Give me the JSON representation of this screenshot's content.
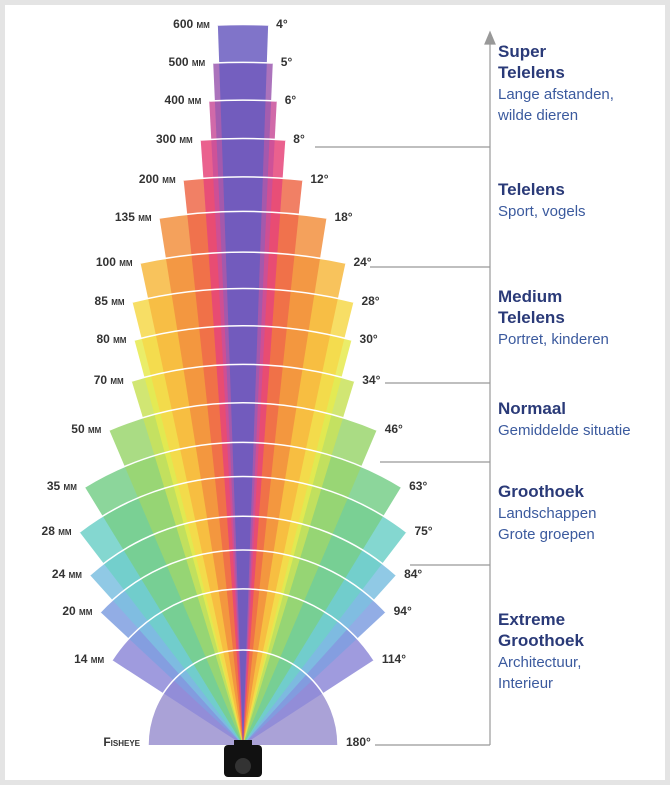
{
  "lenses": [
    {
      "focal": "600 mm",
      "angle": "4°"
    },
    {
      "focal": "500 mm",
      "angle": "5°"
    },
    {
      "focal": "400 mm",
      "angle": "6°"
    },
    {
      "focal": "300 mm",
      "angle": "8°"
    },
    {
      "focal": "200 mm",
      "angle": "12°"
    },
    {
      "focal": "135 mm",
      "angle": "18°"
    },
    {
      "focal": "100 mm",
      "angle": "24°"
    },
    {
      "focal": "85 mm",
      "angle": "28°"
    },
    {
      "focal": "80 mm",
      "angle": "30°"
    },
    {
      "focal": "70 mm",
      "angle": "34°"
    },
    {
      "focal": "50 mm",
      "angle": "46°"
    },
    {
      "focal": "35 mm",
      "angle": "63°"
    },
    {
      "focal": "28 mm",
      "angle": "75°"
    },
    {
      "focal": "24 mm",
      "angle": "84°"
    },
    {
      "focal": "20 mm",
      "angle": "94°"
    },
    {
      "focal": "14 mm",
      "angle": "114°"
    },
    {
      "focal": "Fisheye",
      "angle": "180°"
    }
  ],
  "categories": [
    {
      "title": [
        "Super",
        "Telelens"
      ],
      "description": [
        "Lange afstanden,",
        "wilde dieren"
      ]
    },
    {
      "title": [
        "Telelens"
      ],
      "description": [
        "Sport, vogels"
      ]
    },
    {
      "title": [
        "Medium",
        "Telelens"
      ],
      "description": [
        "Portret, kinderen"
      ]
    },
    {
      "title": [
        "Normaal"
      ],
      "description": [
        "Gemiddelde situatie"
      ]
    },
    {
      "title": [
        "Groothoek"
      ],
      "description": [
        "Landschappen",
        "Grote groepen"
      ]
    },
    {
      "title": [
        "Extreme",
        "Groothoek"
      ],
      "description": [
        "Architectuur,",
        "Interieur"
      ]
    }
  ]
}
